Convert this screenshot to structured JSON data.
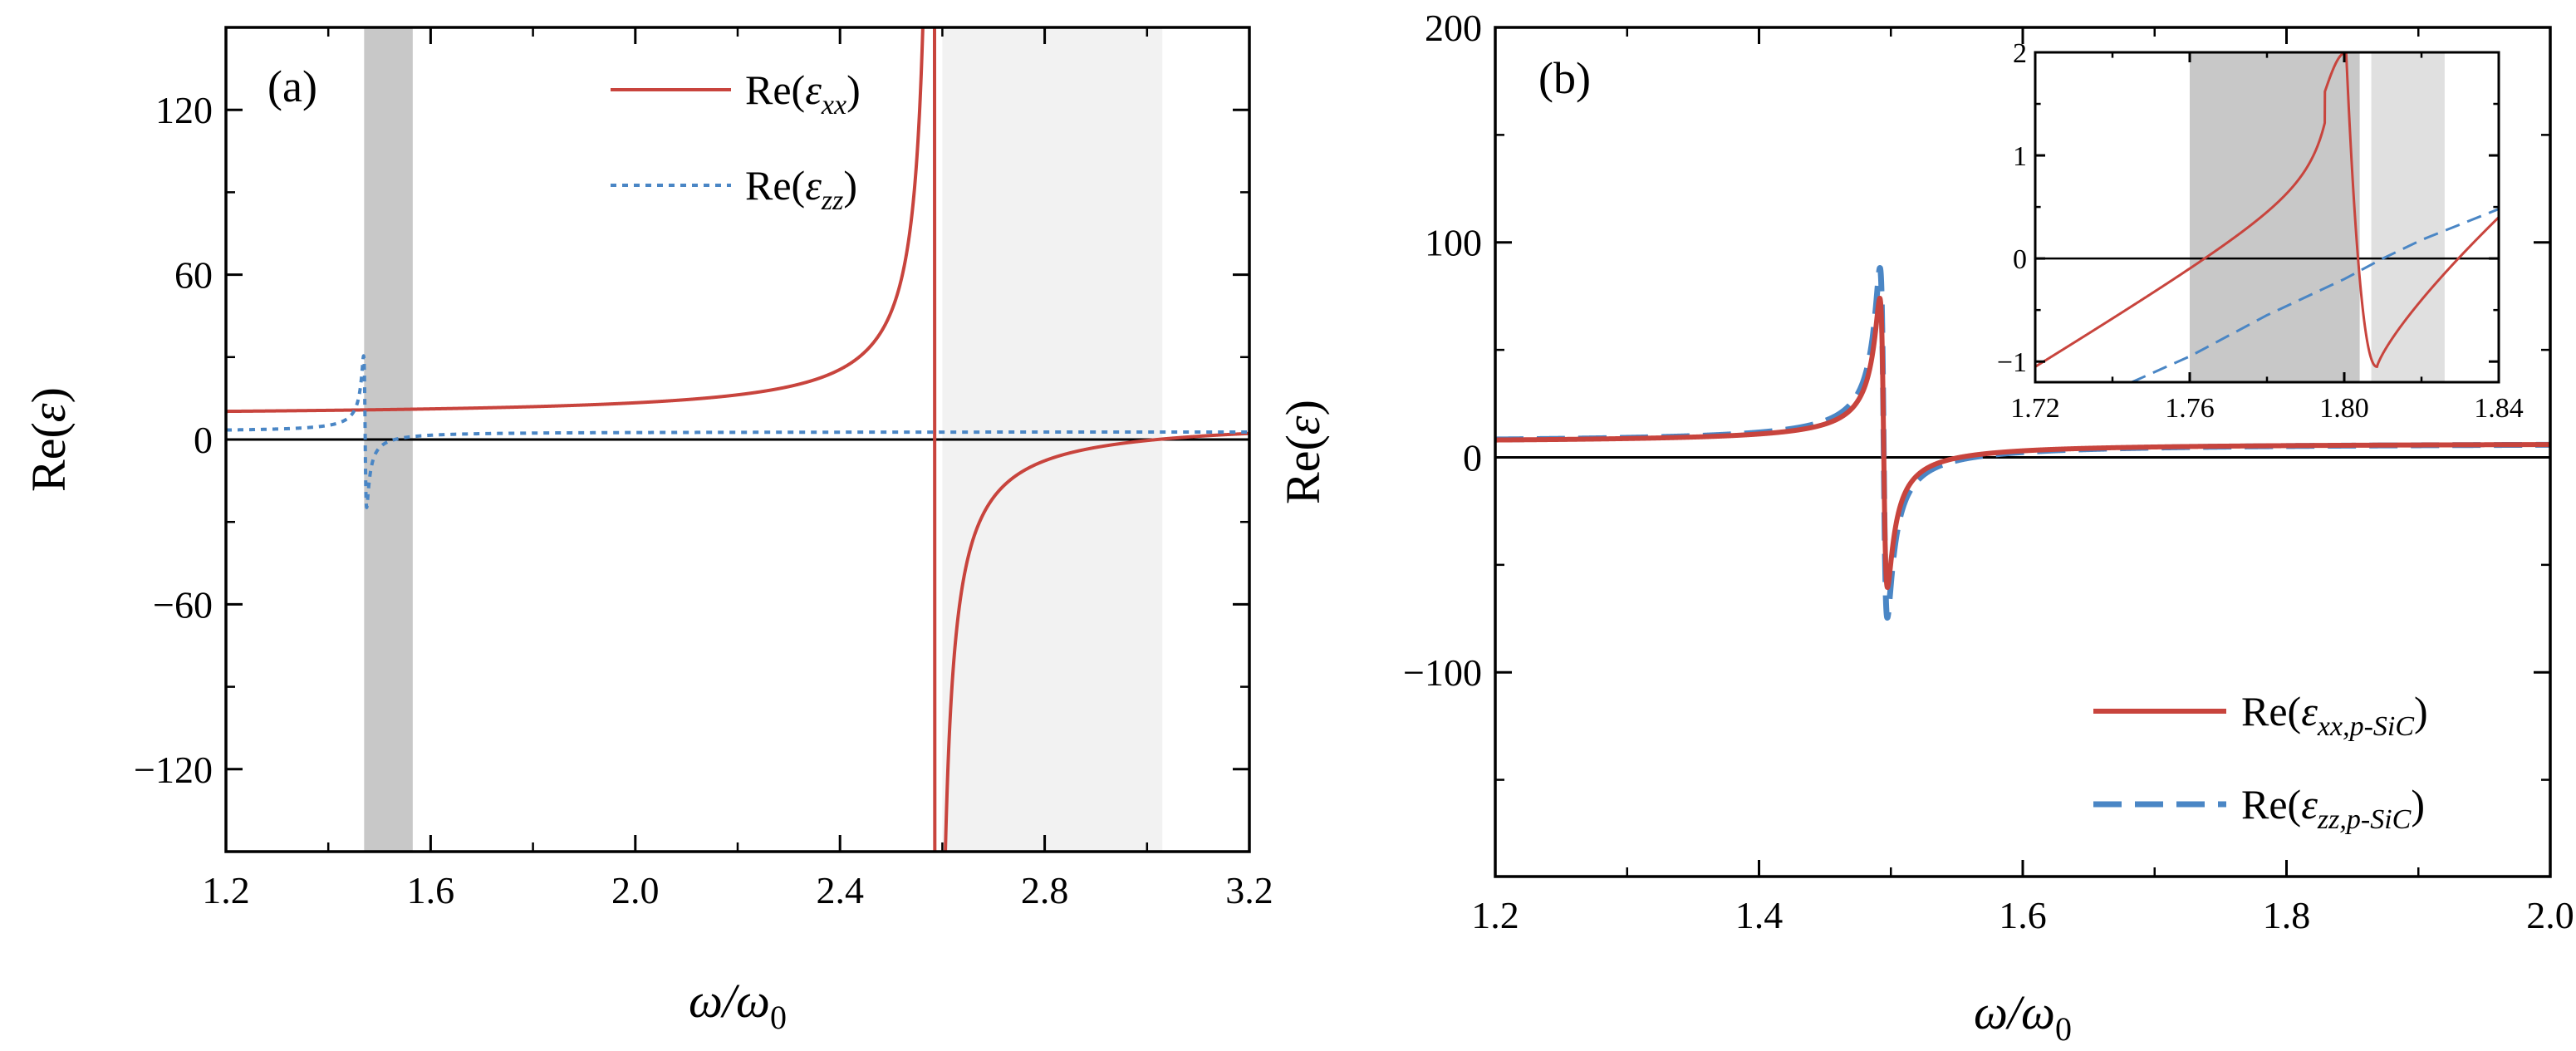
{
  "chart_data": [
    {
      "type": "line",
      "panel_label": "(a)",
      "xlabel": "ω/ω0",
      "xlabel_main": "ω/ω",
      "xlabel_sub": "0",
      "ylabel": "Re(ε)",
      "xlim": [
        1.2,
        3.2
      ],
      "ylim": [
        -150,
        150
      ],
      "xticks": [
        1.2,
        1.6,
        2.0,
        2.4,
        2.8,
        3.2
      ],
      "xtick_labels": [
        "1.2",
        "1.6",
        "2.0",
        "2.4",
        "2.8",
        "3.2"
      ],
      "yticks": [
        -120,
        -60,
        0,
        60,
        120
      ],
      "ytick_labels": [
        "−120",
        "−60",
        "0",
        "60",
        "120"
      ],
      "zero_line": true,
      "grid": false,
      "legend_position": "top-right",
      "shaded_bands": [
        {
          "x0": 1.47,
          "x1": 1.565,
          "color": "#c8c8c8"
        },
        {
          "x0": 2.6,
          "x1": 3.03,
          "color": "#f2f2f2"
        }
      ],
      "series": [
        {
          "name": "Re(ε_xx)",
          "legend_main": "Re(",
          "legend_symbol": "ε",
          "legend_sub": "xx",
          "legend_close": ")",
          "color": "#c8443d",
          "style": "solid",
          "model": {
            "eps_inf": 7.0,
            "wT": 2.585,
            "wL": 3.02,
            "gamma": 0.0015
          }
        },
        {
          "name": "Re(ε_zz)",
          "legend_main": "Re(",
          "legend_symbol": "ε",
          "legend_sub": "zz",
          "legend_close": ")",
          "color": "#4a86c5",
          "style": "dotted",
          "model": {
            "eps_inf": 2.8,
            "wT": 1.472,
            "wL": 1.53,
            "gamma": 0.006
          }
        }
      ]
    },
    {
      "type": "line",
      "panel_label": "(b)",
      "xlabel": "ω/ω0",
      "xlabel_main": "ω/ω",
      "xlabel_sub": "0",
      "ylabel": "Re(ε)",
      "xlim": [
        1.2,
        2.0
      ],
      "ylim": [
        -195,
        200
      ],
      "xticks": [
        1.2,
        1.4,
        1.6,
        1.8,
        2.0
      ],
      "xtick_labels": [
        "1.2",
        "1.4",
        "1.6",
        "1.8",
        "2.0"
      ],
      "yticks": [
        -100,
        0,
        100,
        200
      ],
      "ytick_labels": [
        "−100",
        "0",
        "100",
        "200"
      ],
      "zero_line": true,
      "grid": false,
      "legend_position": "bottom-right",
      "series": [
        {
          "name": "Re(ε_xx,p-SiC)",
          "legend_main": "Re(",
          "legend_symbol": "ε",
          "legend_sub": "xx,p-SiC",
          "legend_close": ")",
          "color": "#c8443d",
          "style": "solid",
          "model": {
            "eps_inf": 6.6,
            "wT": 1.4945,
            "wL": 1.5525,
            "gamma": 0.0058
          }
        },
        {
          "name": "Re(ε_zz,p-SiC)",
          "legend_main": "Re(",
          "legend_symbol": "ε",
          "legend_sub": "zz,p-SiC",
          "legend_close": ")",
          "color": "#4a86c5",
          "style": "dashed",
          "model": {
            "eps_inf": 6.6,
            "wT": 1.4945,
            "wL": 1.562,
            "gamma": 0.0056
          }
        }
      ],
      "inset": {
        "xlim": [
          1.72,
          1.84
        ],
        "ylim": [
          -1.2,
          2.0
        ],
        "xticks": [
          1.72,
          1.76,
          1.8,
          1.84
        ],
        "xtick_labels": [
          "1.72",
          "1.76",
          "1.80",
          "1.84"
        ],
        "yticks": [
          -1,
          0,
          1,
          2
        ],
        "ytick_labels": [
          "−1",
          "0",
          "1",
          "2"
        ],
        "shaded_bands": [
          {
            "x0": 1.76,
            "x1": 1.804,
            "color": "#c8c8c8"
          },
          {
            "x0": 1.807,
            "x1": 1.826,
            "color": "#e0e0e0"
          }
        ],
        "series": [
          {
            "name": "Re(ε_xx,p-SiC)",
            "color": "#c8443d",
            "style": "solid",
            "model": {
              "eps_inf": 0.6,
              "base_slope": 25,
              "base_x0": 1.76,
              "amp": 0.025,
              "w0": 1.8015,
              "gamma": 0.0027,
              "tail_end": 0.38
            }
          },
          {
            "name": "Re(ε_zz,p-SiC)",
            "color": "#4a86c5",
            "style": "dashed",
            "points": [
              [
                1.745,
                -1.2
              ],
              [
                1.76,
                -0.95
              ],
              [
                1.78,
                -0.55
              ],
              [
                1.8,
                -0.2
              ],
              [
                1.81,
                0.0
              ],
              [
                1.82,
                0.18
              ],
              [
                1.84,
                0.48
              ]
            ]
          }
        ]
      }
    }
  ]
}
